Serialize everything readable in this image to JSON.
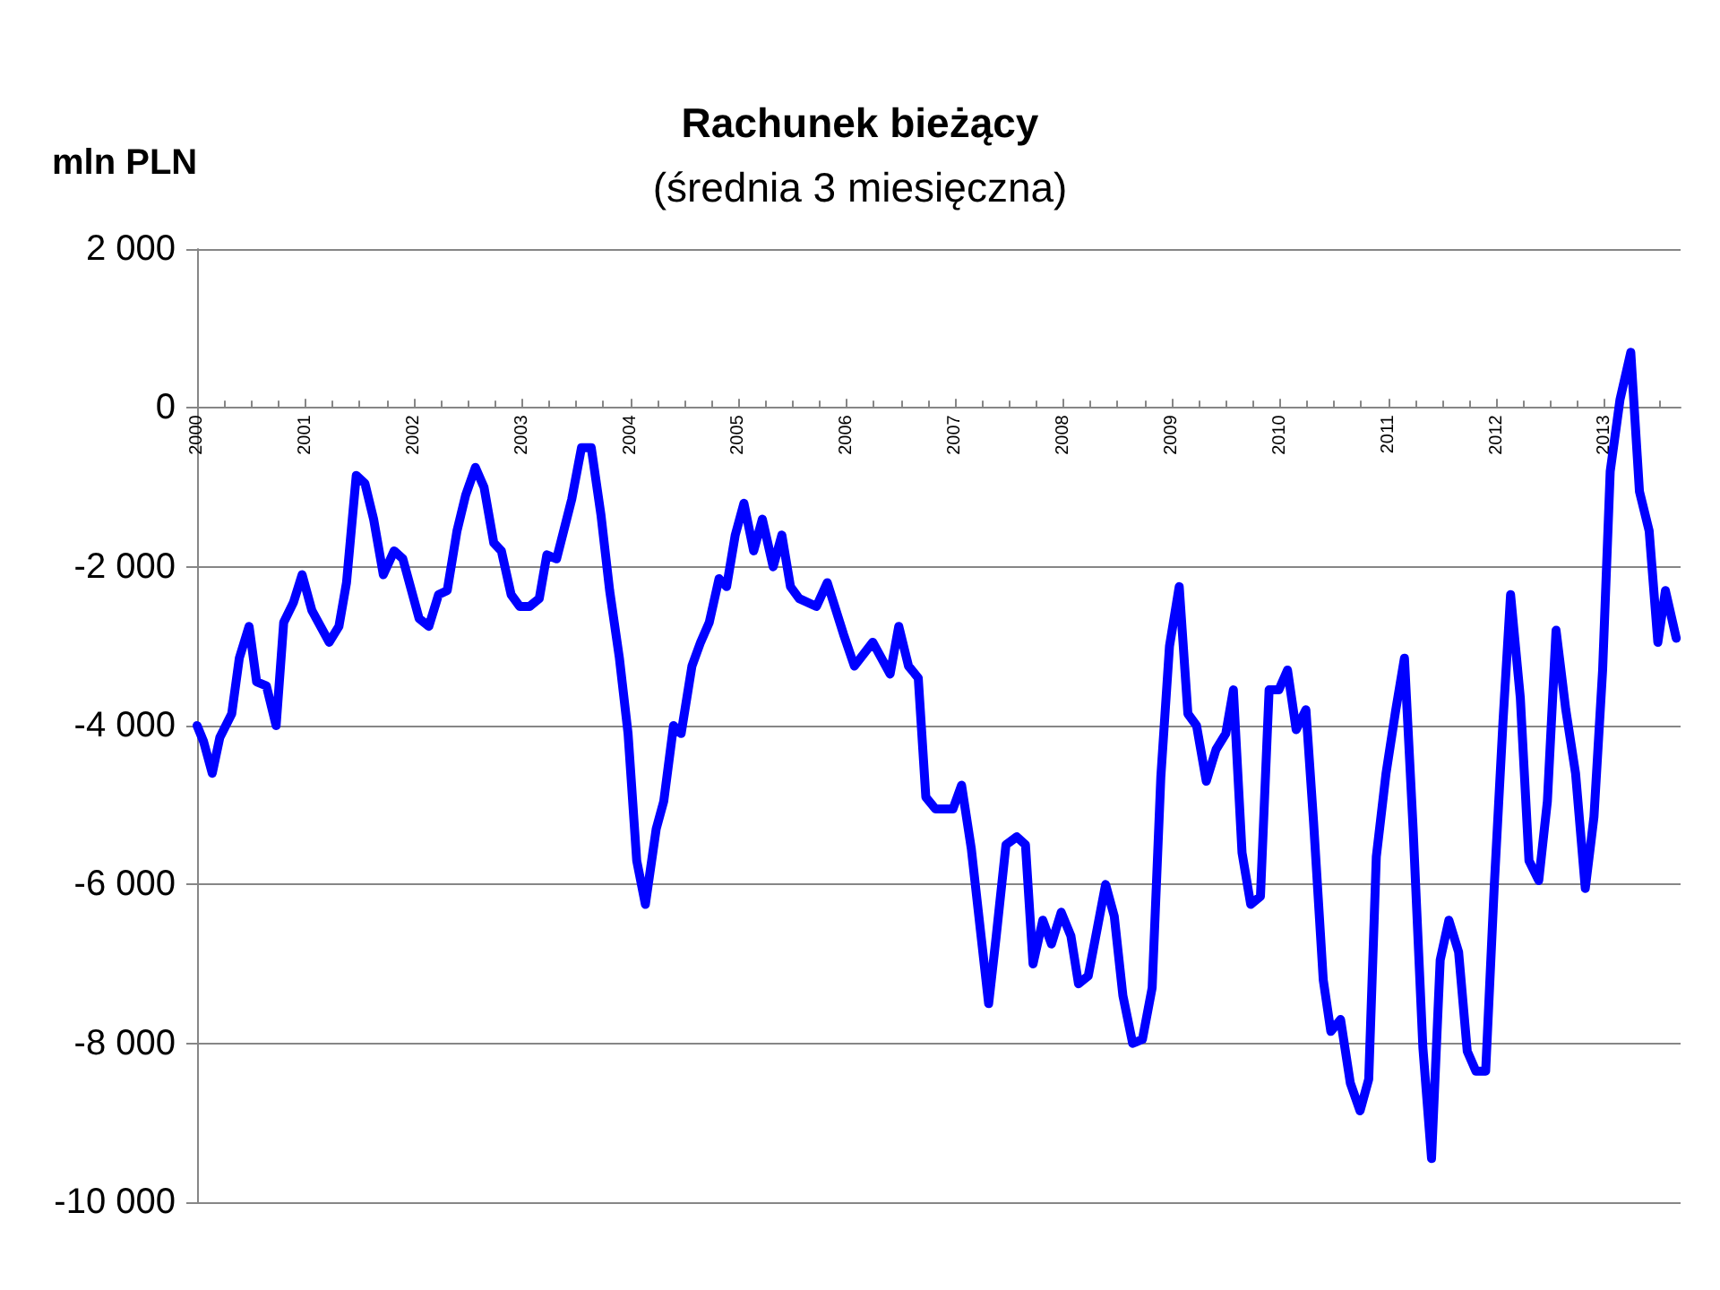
{
  "chart_data": {
    "type": "line",
    "title": "Rachunek bieżący",
    "subtitle": "(średnia 3 miesięczna)",
    "ylabel": "mln PLN",
    "xlim": [
      2000,
      2013.7
    ],
    "xticks": [
      2000,
      2001,
      2002,
      2003,
      2004,
      2005,
      2006,
      2007,
      2008,
      2009,
      2010,
      2011,
      2012,
      2013
    ],
    "ylim": [
      -10000,
      2000
    ],
    "yticks": [
      {
        "value": -10000,
        "label": "-10 000"
      },
      {
        "value": -8000,
        "label": "-8 000"
      },
      {
        "value": -6000,
        "label": "-6 000"
      },
      {
        "value": -4000,
        "label": "-4 000"
      },
      {
        "value": -2000,
        "label": "-2 000"
      },
      {
        "value": 0,
        "label": "0"
      },
      {
        "value": 2000,
        "label": "2 000"
      }
    ],
    "grid": "y",
    "marker": "none",
    "line_style": "solid",
    "series": [
      {
        "color": "#0000ff",
        "x": [
          2000.0,
          2000.06,
          2000.14,
          2000.21,
          2000.32,
          2000.39,
          2000.48,
          2000.55,
          2000.64,
          2000.73,
          2000.8,
          2000.89,
          2000.97,
          2001.06,
          2001.22,
          2001.31,
          2001.38,
          2001.47,
          2001.55,
          2001.63,
          2001.72,
          2001.82,
          2001.9,
          2002.05,
          2002.14,
          2002.23,
          2002.31,
          2002.4,
          2002.48,
          2002.57,
          2002.65,
          2002.74,
          2002.81,
          2002.9,
          2002.98,
          2003.07,
          2003.16,
          2003.23,
          2003.32,
          2003.46,
          2003.55,
          2003.64,
          2003.73,
          2003.81,
          2003.9,
          2003.98,
          2004.06,
          2004.14,
          2004.24,
          2004.31,
          2004.4,
          2004.47,
          2004.57,
          2004.65,
          2004.73,
          2004.82,
          2004.89,
          2004.97,
          2005.05,
          2005.14,
          2005.22,
          2005.32,
          2005.4,
          2005.48,
          2005.56,
          2005.72,
          2005.82,
          2005.97,
          2006.07,
          2006.24,
          2006.4,
          2006.48,
          2006.57,
          2006.66,
          2006.73,
          2006.82,
          2006.98,
          2007.06,
          2007.15,
          2007.24,
          2007.31,
          2007.38,
          2007.47,
          2007.57,
          2007.65,
          2007.72,
          2007.81,
          2007.89,
          2007.98,
          2008.07,
          2008.14,
          2008.23,
          2008.39,
          2008.47,
          2008.55,
          2008.64,
          2008.73,
          2008.82,
          2008.9,
          2008.98,
          2009.07,
          2009.15,
          2009.23,
          2009.32,
          2009.41,
          2009.5,
          2009.57,
          2009.65,
          2009.73,
          2009.82,
          2009.9,
          2009.99,
          2010.07,
          2010.15,
          2010.24,
          2010.31,
          2010.4,
          2010.47,
          2010.56,
          2010.65,
          2010.74,
          2010.82,
          2010.89,
          2010.98,
          2011.07,
          2011.15,
          2011.23,
          2011.32,
          2011.4,
          2011.48,
          2011.56,
          2011.65,
          2011.73,
          2011.81,
          2011.9,
          2011.98,
          2012.06,
          2012.13,
          2012.22,
          2012.3,
          2012.39,
          2012.47,
          2012.55,
          2012.64,
          2012.73,
          2012.82,
          2012.9,
          2012.98,
          2013.05,
          2013.14,
          2013.24,
          2013.32,
          2013.41,
          2013.49,
          2013.56,
          2013.66
        ],
        "values": [
          -4000,
          -4200,
          -4600,
          -4150,
          -3850,
          -3150,
          -2750,
          -3450,
          -3500,
          -4000,
          -2700,
          -2450,
          -2100,
          -2550,
          -2950,
          -2750,
          -2200,
          -850,
          -950,
          -1400,
          -2100,
          -1800,
          -1900,
          -2650,
          -2750,
          -2350,
          -2300,
          -1550,
          -1100,
          -750,
          -1000,
          -1700,
          -1800,
          -2350,
          -2500,
          -2500,
          -2400,
          -1850,
          -1900,
          -1150,
          -500,
          -500,
          -1350,
          -2300,
          -3150,
          -4100,
          -5700,
          -6250,
          -5300,
          -4950,
          -4000,
          -4100,
          -3250,
          -2950,
          -2700,
          -2150,
          -2250,
          -1600,
          -1200,
          -1800,
          -1400,
          -2000,
          -1600,
          -2250,
          -2400,
          -2500,
          -2200,
          -2850,
          -3250,
          -2950,
          -3350,
          -2750,
          -3250,
          -3400,
          -4900,
          -5050,
          -5050,
          -4750,
          -5550,
          -6650,
          -7500,
          -6650,
          -5500,
          -5400,
          -5500,
          -7000,
          -6450,
          -6750,
          -6350,
          -6650,
          -7250,
          -7150,
          -6000,
          -6400,
          -7400,
          -8000,
          -7950,
          -7300,
          -4650,
          -3000,
          -2250,
          -3850,
          -4000,
          -4700,
          -4300,
          -4100,
          -3550,
          -5600,
          -6250,
          -6150,
          -3550,
          -3550,
          -3300,
          -4050,
          -3800,
          -5200,
          -7200,
          -7850,
          -7700,
          -8500,
          -8850,
          -8450,
          -5650,
          -4600,
          -3800,
          -3150,
          -5300,
          -8050,
          -9450,
          -6950,
          -6450,
          -6850,
          -8100,
          -8350,
          -8350,
          -6000,
          -3950,
          -2350,
          -3650,
          -5700,
          -5950,
          -4950,
          -2800,
          -3800,
          -4600,
          -6050,
          -5150,
          -3300,
          -800,
          100,
          700,
          -1050,
          -1550,
          -2950,
          -2300,
          -2900
        ]
      }
    ]
  }
}
